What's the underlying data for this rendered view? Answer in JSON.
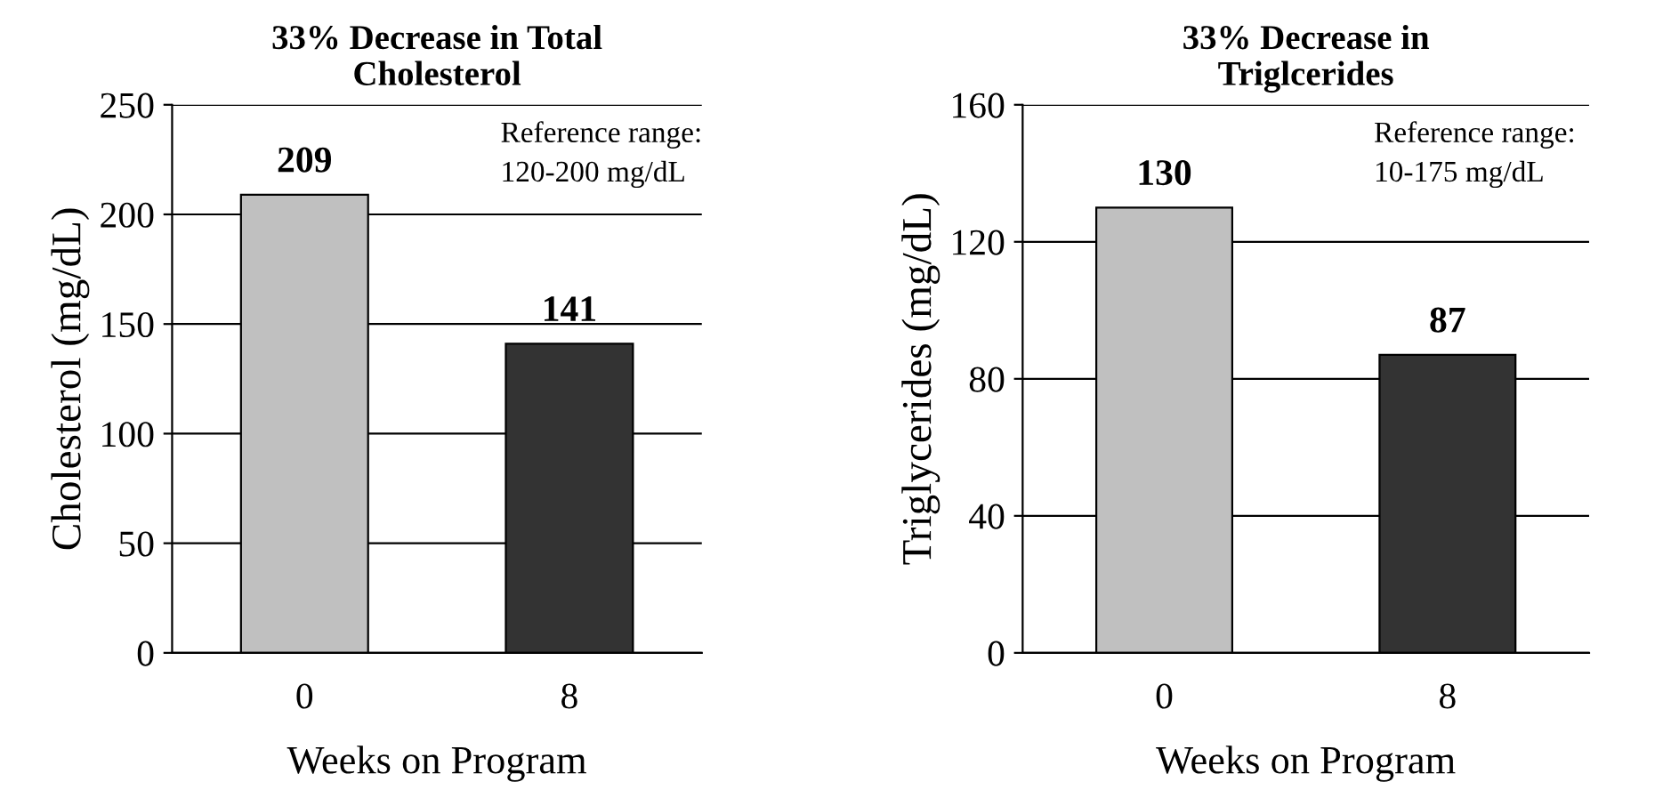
{
  "chart_data": [
    {
      "type": "bar",
      "title": "33% Decrease in Total\nCholesterol",
      "xlabel": "Weeks on Program",
      "ylabel": "Cholesterol (mg/dL)",
      "categories": [
        "0",
        "8"
      ],
      "values": [
        209,
        141
      ],
      "colors": [
        "#c0c0c0",
        "#333333"
      ],
      "ylim": [
        0,
        250
      ],
      "yticks": [
        0,
        50,
        100,
        150,
        200,
        250
      ],
      "grid": "y",
      "data_labels": true,
      "annotations": [
        "Reference range:\n120-200 mg/dL"
      ]
    },
    {
      "type": "bar",
      "title": "33% Decrease in\nTriglcerides",
      "xlabel": "Weeks on Program",
      "ylabel": "Triglycerides (mg/dL)",
      "categories": [
        "0",
        "8"
      ],
      "values": [
        130,
        87
      ],
      "colors": [
        "#c0c0c0",
        "#333333"
      ],
      "ylim": [
        0,
        160
      ],
      "yticks": [
        0,
        40,
        80,
        120,
        160
      ],
      "grid": "y",
      "data_labels": true,
      "annotations": [
        "Reference range:\n10-175 mg/dL"
      ]
    }
  ]
}
